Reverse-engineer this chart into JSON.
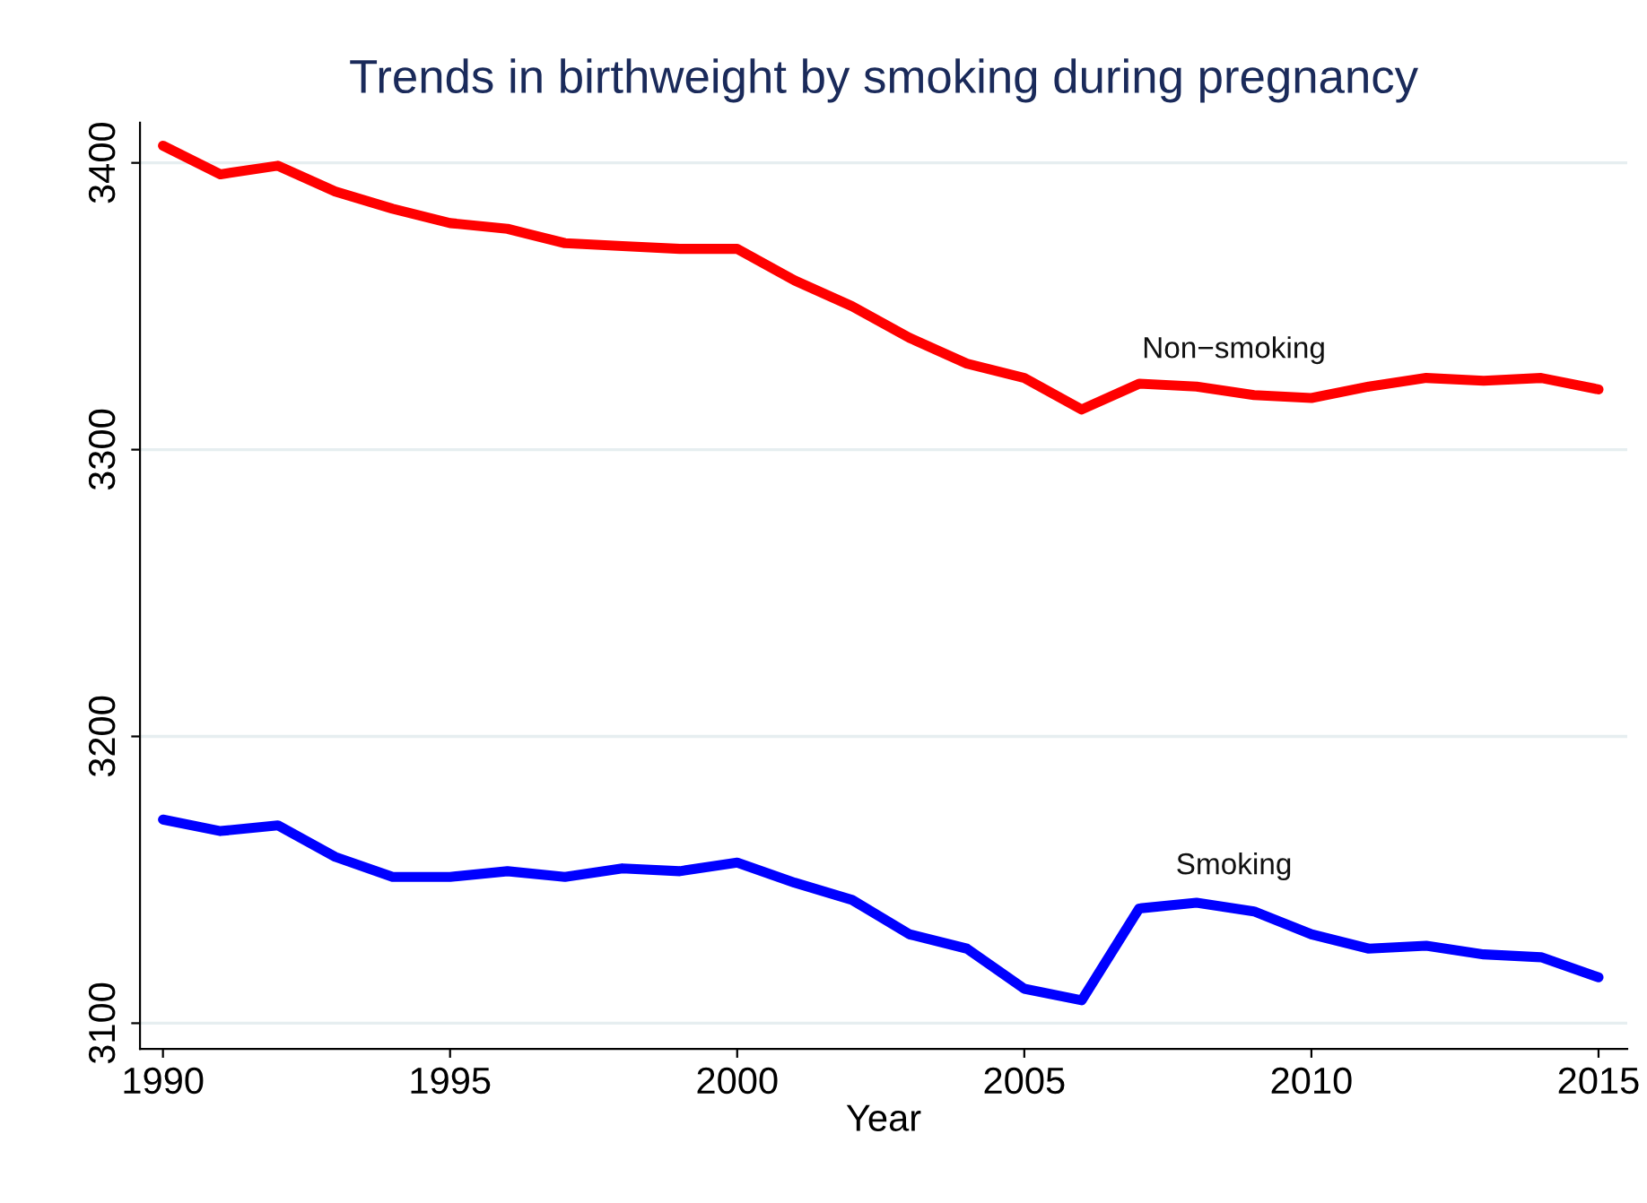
{
  "chart_data": {
    "type": "line",
    "title": "Trends in birthweight by smoking during pregnancy",
    "xlabel": "Year",
    "x": [
      1990,
      1991,
      1992,
      1993,
      1994,
      1995,
      1996,
      1997,
      1998,
      1999,
      2000,
      2001,
      2002,
      2003,
      2004,
      2005,
      2006,
      2007,
      2008,
      2009,
      2010,
      2011,
      2012,
      2013,
      2014,
      2015
    ],
    "series": [
      {
        "name": "Non−smoking",
        "color": "#ff0000",
        "values": [
          3406,
          3396,
          3399,
          3390,
          3384,
          3379,
          3377,
          3372,
          3371,
          3370,
          3370,
          3359,
          3350,
          3339,
          3330,
          3325,
          3314,
          3323,
          3322,
          3319,
          3318,
          3322,
          3325,
          3324,
          3325,
          3321
        ]
      },
      {
        "name": "Smoking",
        "color": "#0000ff",
        "values": [
          3171,
          3167,
          3169,
          3158,
          3151,
          3151,
          3153,
          3151,
          3154,
          3153,
          3156,
          3149,
          3143,
          3131,
          3126,
          3112,
          3108,
          3140,
          3142,
          3139,
          3131,
          3126,
          3127,
          3124,
          3123,
          3116
        ]
      }
    ],
    "xlim": [
      1989.6,
      2015.5
    ],
    "ylim": [
      3091,
      3414
    ],
    "xticks": [
      1990,
      1995,
      2000,
      2005,
      2010,
      2015
    ],
    "yticks": [
      3100,
      3200,
      3300,
      3400
    ],
    "grid": "y",
    "legend": false,
    "line_style": "solid",
    "marker": "none"
  }
}
